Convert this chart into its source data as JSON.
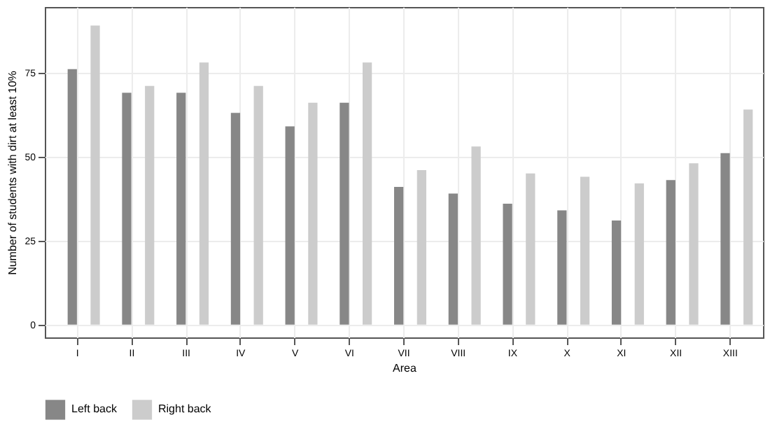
{
  "chart_data": {
    "type": "bar",
    "xlabel": "Area",
    "ylabel": "Number of students with dirt at least 10%",
    "categories": [
      "I",
      "II",
      "III",
      "IV",
      "V",
      "VI",
      "VII",
      "VIII",
      "IX",
      "X",
      "XI",
      "XII",
      "XIII"
    ],
    "series": [
      {
        "name": "Left back",
        "color": "#878787",
        "values": [
          76,
          69,
          69,
          63,
          59,
          66,
          41,
          39,
          36,
          34,
          31,
          43,
          51
        ]
      },
      {
        "name": "Right back",
        "color": "#cccccc",
        "values": [
          89,
          71,
          78,
          71,
          66,
          78,
          46,
          53,
          45,
          44,
          42,
          48,
          64
        ]
      }
    ],
    "ylim": [
      -3.8,
      94.5
    ],
    "yticks": [
      0,
      25,
      50,
      75
    ],
    "grid": true,
    "legend": "bottom"
  }
}
